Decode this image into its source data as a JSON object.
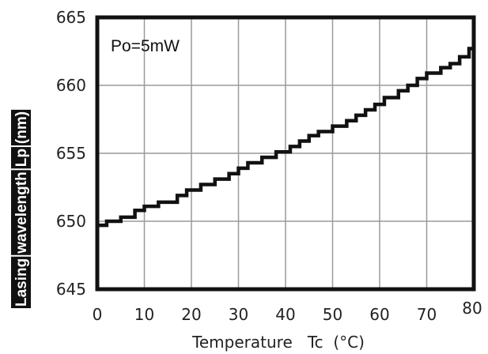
{
  "chart_data": {
    "type": "line",
    "step": true,
    "xlabel": "Temperature   Tc  (°C)",
    "ylabel_segments": [
      "Lasing",
      "wavelength",
      "Lp",
      "(nm)"
    ],
    "annotation": "Po=5mW",
    "xlim": [
      0,
      80
    ],
    "ylim": [
      645,
      665
    ],
    "xticks": [
      "0",
      "10",
      "20",
      "30",
      "40",
      "50",
      "60",
      "70",
      "80"
    ],
    "yticks": [
      "645",
      "650",
      "655",
      "660",
      "665"
    ],
    "grid": true,
    "line_color": "#111111",
    "series": [
      {
        "x": [
          0,
          2,
          5,
          8,
          10,
          13,
          17,
          19,
          22,
          25,
          28,
          30,
          32,
          35,
          38,
          41,
          43,
          45,
          47,
          50,
          53,
          55,
          57,
          59,
          61,
          64,
          66,
          68,
          70,
          73,
          75,
          77,
          79
        ],
        "values": [
          649.7,
          650.0,
          650.3,
          650.8,
          651.1,
          651.4,
          651.9,
          652.3,
          652.7,
          653.1,
          653.5,
          653.9,
          654.3,
          654.7,
          655.1,
          655.5,
          655.9,
          656.3,
          656.6,
          657.0,
          657.4,
          657.8,
          658.2,
          658.6,
          659.1,
          659.6,
          660.0,
          660.5,
          660.9,
          661.3,
          661.6,
          662.1,
          662.7
        ]
      }
    ]
  }
}
